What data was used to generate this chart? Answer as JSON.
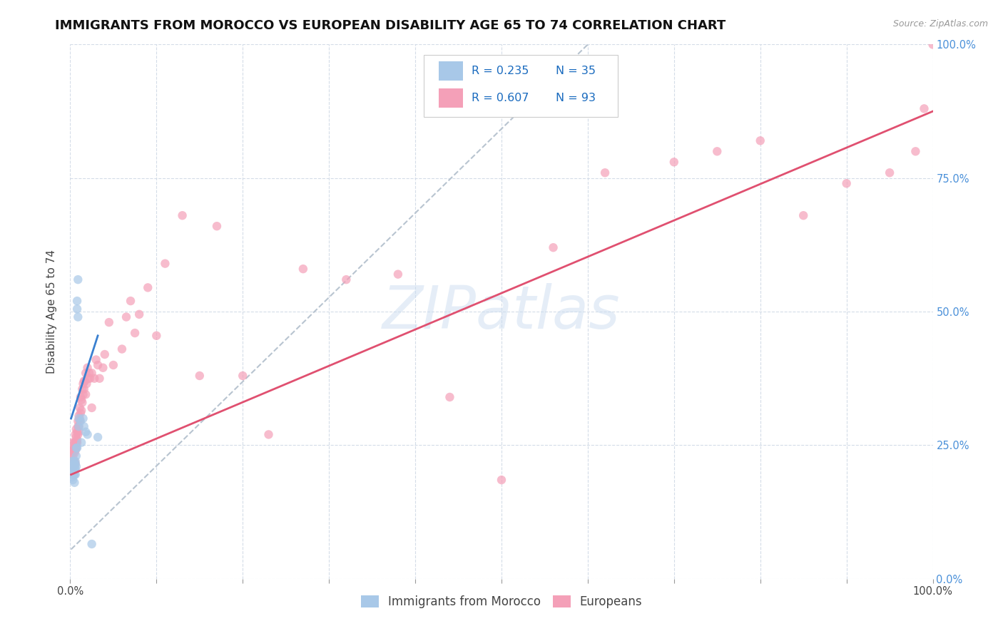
{
  "title": "IMMIGRANTS FROM MOROCCO VS EUROPEAN DISABILITY AGE 65 TO 74 CORRELATION CHART",
  "source": "Source: ZipAtlas.com",
  "ylabel": "Disability Age 65 to 74",
  "xlim": [
    0,
    1.0
  ],
  "ylim": [
    0,
    1.0
  ],
  "watermark": "ZIPatlas",
  "blue_R": "R = 0.235",
  "blue_N": "N = 35",
  "pink_R": "R = 0.607",
  "pink_N": "N = 93",
  "blue_color": "#a8c8e8",
  "pink_color": "#f4a0b8",
  "blue_line_color": "#3a80d0",
  "pink_line_color": "#e05070",
  "dashed_line_color": "#b8c4d0",
  "legend_labels": [
    "Immigrants from Morocco",
    "Europeans"
  ],
  "blue_scatter_x": [
    0.002,
    0.002,
    0.003,
    0.003,
    0.003,
    0.004,
    0.004,
    0.004,
    0.004,
    0.005,
    0.005,
    0.005,
    0.005,
    0.006,
    0.006,
    0.006,
    0.006,
    0.007,
    0.007,
    0.007,
    0.008,
    0.008,
    0.008,
    0.009,
    0.009,
    0.01,
    0.01,
    0.012,
    0.013,
    0.015,
    0.016,
    0.018,
    0.02,
    0.025,
    0.032
  ],
  "blue_scatter_y": [
    0.22,
    0.19,
    0.21,
    0.2,
    0.185,
    0.215,
    0.205,
    0.195,
    0.22,
    0.21,
    0.195,
    0.205,
    0.18,
    0.215,
    0.205,
    0.22,
    0.195,
    0.23,
    0.245,
    0.21,
    0.505,
    0.52,
    0.245,
    0.56,
    0.49,
    0.285,
    0.3,
    0.295,
    0.255,
    0.3,
    0.285,
    0.275,
    0.27,
    0.065,
    0.265
  ],
  "pink_scatter_x": [
    0.001,
    0.002,
    0.002,
    0.002,
    0.003,
    0.003,
    0.003,
    0.003,
    0.004,
    0.004,
    0.004,
    0.005,
    0.005,
    0.005,
    0.005,
    0.005,
    0.006,
    0.006,
    0.006,
    0.006,
    0.007,
    0.007,
    0.007,
    0.007,
    0.008,
    0.008,
    0.008,
    0.009,
    0.009,
    0.009,
    0.01,
    0.01,
    0.01,
    0.011,
    0.011,
    0.011,
    0.012,
    0.012,
    0.013,
    0.013,
    0.014,
    0.014,
    0.015,
    0.015,
    0.016,
    0.016,
    0.017,
    0.018,
    0.018,
    0.019,
    0.02,
    0.021,
    0.022,
    0.023,
    0.025,
    0.025,
    0.028,
    0.03,
    0.032,
    0.034,
    0.038,
    0.04,
    0.045,
    0.05,
    0.06,
    0.065,
    0.07,
    0.075,
    0.08,
    0.09,
    0.1,
    0.11,
    0.13,
    0.15,
    0.17,
    0.2,
    0.23,
    0.27,
    0.32,
    0.38,
    0.44,
    0.5,
    0.56,
    0.62,
    0.7,
    0.75,
    0.8,
    0.85,
    0.9,
    0.95,
    0.98,
    0.99,
    1.0
  ],
  "pink_scatter_y": [
    0.22,
    0.235,
    0.24,
    0.21,
    0.22,
    0.24,
    0.255,
    0.23,
    0.21,
    0.22,
    0.245,
    0.24,
    0.255,
    0.22,
    0.235,
    0.245,
    0.215,
    0.24,
    0.255,
    0.27,
    0.245,
    0.265,
    0.255,
    0.28,
    0.26,
    0.275,
    0.255,
    0.27,
    0.285,
    0.295,
    0.285,
    0.305,
    0.275,
    0.295,
    0.32,
    0.3,
    0.31,
    0.34,
    0.315,
    0.335,
    0.33,
    0.355,
    0.345,
    0.365,
    0.37,
    0.355,
    0.37,
    0.345,
    0.385,
    0.365,
    0.395,
    0.375,
    0.385,
    0.375,
    0.385,
    0.32,
    0.375,
    0.41,
    0.4,
    0.375,
    0.395,
    0.42,
    0.48,
    0.4,
    0.43,
    0.49,
    0.52,
    0.46,
    0.495,
    0.545,
    0.455,
    0.59,
    0.68,
    0.38,
    0.66,
    0.38,
    0.27,
    0.58,
    0.56,
    0.57,
    0.34,
    0.185,
    0.62,
    0.76,
    0.78,
    0.8,
    0.82,
    0.68,
    0.74,
    0.76,
    0.8,
    0.88,
    1.0
  ],
  "blue_trendline_x": [
    0.001,
    0.032
  ],
  "blue_trendline_y": [
    0.3,
    0.455
  ],
  "pink_trendline_x": [
    0.001,
    1.0
  ],
  "pink_trendline_y": [
    0.195,
    0.875
  ],
  "dashed_trendline_x": [
    0.001,
    0.6
  ],
  "dashed_trendline_y": [
    0.055,
    1.0
  ],
  "background_color": "#ffffff",
  "grid_color": "#d4dce8",
  "title_fontsize": 13,
  "axis_label_fontsize": 11,
  "tick_fontsize": 10.5,
  "legend_fontsize": 11,
  "legend_text_color": "#1a6bbf",
  "right_tick_color": "#4a90d9"
}
